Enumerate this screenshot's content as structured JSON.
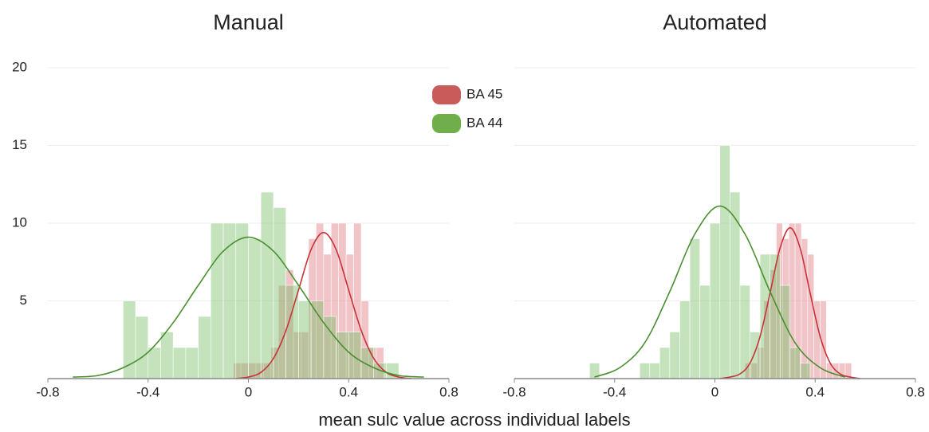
{
  "xlabel": "mean sulc value across individual labels",
  "chart_data": [
    {
      "type": "histogram",
      "title": "Manual",
      "xlim": [
        -0.8,
        0.8
      ],
      "xticks": [
        -0.8,
        -0.4,
        0,
        0.4,
        0.8
      ],
      "ylim": [
        0,
        20
      ],
      "yticks": [
        5,
        10,
        15,
        20
      ],
      "ytick_labels": true,
      "grid": true,
      "legend": "top-right",
      "series": [
        {
          "name": "BA 45",
          "color": "#c95b5b",
          "fill": "#e07c82",
          "line_color": "#c8323a",
          "bins": [
            -0.06,
            -0.03,
            0,
            0.03,
            0.06,
            0.09,
            0.12,
            0.15,
            0.18,
            0.21,
            0.24,
            0.27,
            0.3,
            0.33,
            0.36,
            0.39,
            0.42,
            0.45,
            0.48,
            0.51,
            0.54
          ],
          "values": [
            1,
            1,
            1,
            1,
            1,
            2,
            6,
            7,
            3,
            3,
            9,
            10,
            8,
            10,
            10,
            8,
            10,
            5,
            2,
            2
          ],
          "curve": {
            "x": [
              -0.05,
              0,
              0.05,
              0.1,
              0.15,
              0.2,
              0.25,
              0.3,
              0.35,
              0.4,
              0.45,
              0.5,
              0.55,
              0.6,
              0.65
            ],
            "values": [
              0,
              0.1,
              0.4,
              1.3,
              3.1,
              5.7,
              8.3,
              9.4,
              8.3,
              5.7,
              3.1,
              1.3,
              0.4,
              0.1,
              0
            ]
          }
        },
        {
          "name": "BA 44",
          "color": "#6fae4b",
          "fill": "#7dbf6a",
          "line_color": "#4a8f2f",
          "bins": [
            -0.5,
            -0.45,
            -0.4,
            -0.35,
            -0.3,
            -0.25,
            -0.2,
            -0.15,
            -0.1,
            -0.05,
            0,
            0.05,
            0.1,
            0.15,
            0.2,
            0.25,
            0.3,
            0.35,
            0.4,
            0.45,
            0.5,
            0.55,
            0.6
          ],
          "values": [
            5,
            4,
            2,
            3,
            2,
            2,
            4,
            10,
            10,
            10,
            9,
            12,
            11,
            6,
            5,
            5,
            4,
            3,
            3,
            2,
            1,
            1
          ],
          "curve": {
            "x": [
              -0.7,
              -0.6,
              -0.5,
              -0.4,
              -0.3,
              -0.2,
              -0.1,
              0,
              0.1,
              0.2,
              0.3,
              0.4,
              0.5,
              0.6,
              0.7
            ],
            "values": [
              0.1,
              0.2,
              0.7,
              1.7,
              3.6,
              6.0,
              8.2,
              9.1,
              8.2,
              6.0,
              3.6,
              1.7,
              0.7,
              0.2,
              0.1
            ]
          }
        }
      ]
    },
    {
      "type": "histogram",
      "title": "Automated",
      "xlim": [
        -0.8,
        0.8
      ],
      "xticks": [
        -0.8,
        -0.4,
        0,
        0.4,
        0.8
      ],
      "ylim": [
        0,
        20
      ],
      "yticks": [
        5,
        10,
        15,
        20
      ],
      "ytick_labels": false,
      "grid": true,
      "legend": false,
      "series": [
        {
          "fill": "#e07c82",
          "line_color": "#c8323a",
          "bins": [
            0.12,
            0.145,
            0.17,
            0.195,
            0.22,
            0.245,
            0.27,
            0.295,
            0.32,
            0.345,
            0.37,
            0.395,
            0.42,
            0.445,
            0.47,
            0.495,
            0.52,
            0.545
          ],
          "values": [
            1,
            1,
            2,
            5,
            7,
            10,
            9,
            10,
            10,
            9,
            8,
            5,
            5,
            1,
            1,
            1,
            1
          ],
          "curve": {
            "x": [
              0.02,
              0.06,
              0.1,
              0.14,
              0.18,
              0.22,
              0.26,
              0.3,
              0.34,
              0.38,
              0.42,
              0.46,
              0.5,
              0.54,
              0.58
            ],
            "values": [
              0,
              0.1,
              0.3,
              1.0,
              2.7,
              5.5,
              8.4,
              9.7,
              8.4,
              5.5,
              2.7,
              1.0,
              0.3,
              0.1,
              0
            ]
          }
        },
        {
          "fill": "#7dbf6a",
          "line_color": "#4a8f2f",
          "bins": [
            -0.5,
            -0.46,
            -0.42,
            -0.38,
            -0.34,
            -0.3,
            -0.26,
            -0.22,
            -0.18,
            -0.14,
            -0.1,
            -0.06,
            -0.02,
            0.02,
            0.06,
            0.1,
            0.14,
            0.18,
            0.22,
            0.26,
            0.3,
            0.34,
            0.38
          ],
          "values": [
            1,
            0,
            0,
            0,
            0,
            1,
            1,
            2,
            3,
            5,
            9,
            6,
            10,
            15,
            12,
            6,
            3,
            8,
            8,
            6,
            2,
            1
          ],
          "curve": {
            "x": [
              -0.48,
              -0.38,
              -0.28,
              -0.18,
              -0.08,
              0.02,
              0.12,
              0.22,
              0.32,
              0.42,
              0.52
            ],
            "values": [
              0.1,
              0.7,
              2.3,
              5.6,
              9.3,
              11.1,
              9.3,
              5.6,
              2.3,
              0.7,
              0.1
            ]
          }
        }
      ]
    }
  ]
}
